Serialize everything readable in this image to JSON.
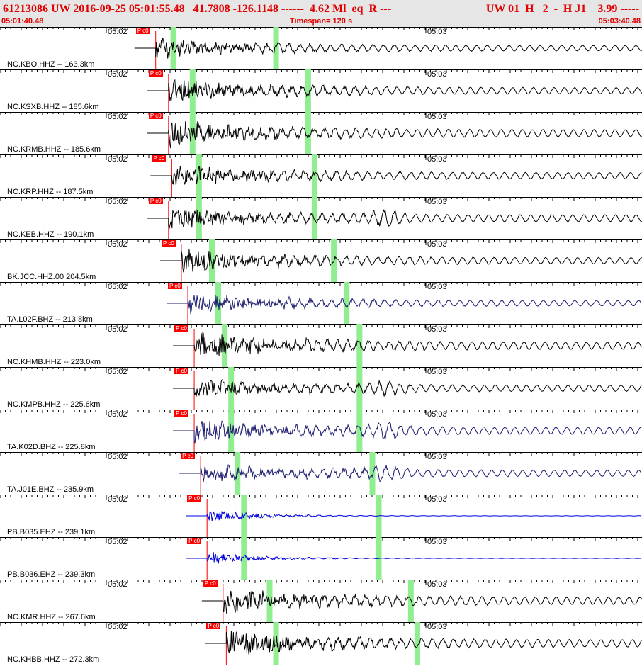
{
  "header": {
    "title": "61213086 UW 2016-09-25 05:01:55.48   41.7808 -126.1148 ------  4.62 Ml  eq  R ---",
    "title_right": "UW 01  H   2  -  H J1    3.99 -----",
    "start_time": "05:01:40.48",
    "timespan": "Timespan= 120 s",
    "end_time": "05:03:40.48"
  },
  "minute_marks": [
    "05:02",
    "05:03"
  ],
  "pick_label": "P c0",
  "colors": {
    "title": "#e00000",
    "pick": "#ff0000",
    "arrival": "#90ee90",
    "trace_black": "#000000",
    "trace_navy": "#1a1a6e",
    "trace_blue": "#0000dd"
  },
  "traces": [
    {
      "label": "NC.KBO.HHZ -- 163.3km",
      "color": "black",
      "amp": 0.6,
      "p": 0.22,
      "g1": 0.27,
      "g2": 0.43,
      "kind": "hhz"
    },
    {
      "label": "NC.KSXB.HHZ -- 185.6km",
      "color": "black",
      "amp": 0.7,
      "p": 0.24,
      "g1": 0.3,
      "g2": 0.48,
      "kind": "hhz"
    },
    {
      "label": "NC.KRMB.HHZ -- 185.6km",
      "color": "black",
      "amp": 0.8,
      "p": 0.24,
      "g1": 0.3,
      "g2": 0.48,
      "kind": "hhz"
    },
    {
      "label": "NC.KRP.HHZ -- 187.5km",
      "color": "black",
      "amp": 0.7,
      "p": 0.245,
      "g1": 0.31,
      "g2": 0.49,
      "kind": "hhz"
    },
    {
      "label": "NC.KEB.HHZ -- 190.1km",
      "color": "black",
      "amp": 0.9,
      "p": 0.24,
      "g1": 0.31,
      "g2": 0.49,
      "kind": "burst"
    },
    {
      "label": "BK.JCC.HHZ.00 204.5km",
      "color": "black",
      "amp": 0.7,
      "p": 0.26,
      "g1": 0.33,
      "g2": 0.52,
      "kind": "hhz"
    },
    {
      "label": "TA.L02F.BHZ -- 213.8km",
      "color": "navy",
      "amp": 0.6,
      "p": 0.27,
      "g1": 0.34,
      "g2": 0.54,
      "kind": "bhz"
    },
    {
      "label": "NC.KHMB.HHZ -- 223.0km",
      "color": "black",
      "amp": 0.8,
      "p": 0.28,
      "g1": 0.35,
      "g2": 0.56,
      "kind": "hhz"
    },
    {
      "label": "NC.KMPB.HHZ -- 225.6km",
      "color": "black",
      "amp": 0.8,
      "p": 0.28,
      "g1": 0.36,
      "g2": 0.56,
      "kind": "burst"
    },
    {
      "label": "TA.K02D.BHZ -- 225.8km",
      "color": "navy",
      "amp": 0.9,
      "p": 0.28,
      "g1": 0.36,
      "g2": 0.56,
      "kind": "burst"
    },
    {
      "label": "TA.J01E.BHZ -- 235.9km",
      "color": "navy",
      "amp": 0.8,
      "p": 0.29,
      "g1": 0.37,
      "g2": 0.58,
      "kind": "burst"
    },
    {
      "label": "PB.B035.EHZ -- 239.1km",
      "color": "blue",
      "amp": 0.35,
      "p": 0.3,
      "g1": 0.38,
      "g2": 0.59,
      "kind": "decay"
    },
    {
      "label": "PB.B036.EHZ -- 239.3km",
      "color": "blue",
      "amp": 0.35,
      "p": 0.3,
      "g1": 0.38,
      "g2": 0.59,
      "kind": "decay"
    },
    {
      "label": "NC.KMR.HHZ -- 267.6km",
      "color": "black",
      "amp": 0.8,
      "p": 0.325,
      "g1": 0.42,
      "g2": 0.64,
      "kind": "hhz"
    },
    {
      "label": "NC.KHBB.HHZ -- 272.3km",
      "color": "black",
      "amp": 0.8,
      "p": 0.33,
      "g1": 0.43,
      "g2": 0.65,
      "kind": "hhz"
    }
  ]
}
